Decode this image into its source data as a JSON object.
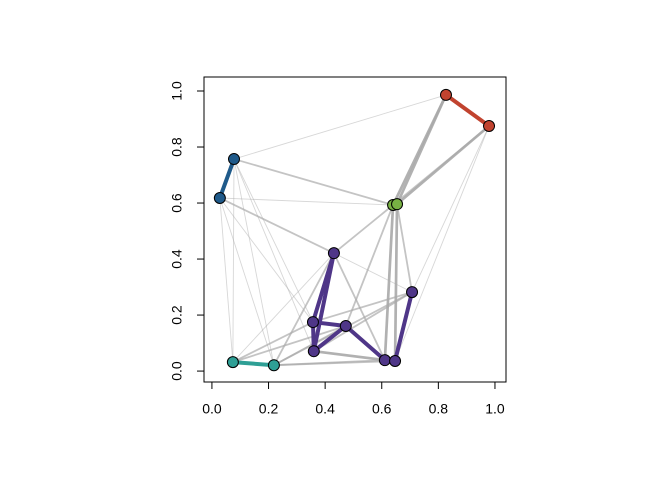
{
  "chart_data": {
    "type": "network",
    "xlim": [
      -0.028,
      1.039
    ],
    "ylim": [
      -0.039,
      1.05
    ],
    "xticks": [
      {
        "value": 0,
        "label": "0.0"
      },
      {
        "value": 0.2,
        "label": "0.2"
      },
      {
        "value": 0.4,
        "label": "0.4"
      },
      {
        "value": 0.6,
        "label": "0.6"
      },
      {
        "value": 0.8,
        "label": "0.8"
      },
      {
        "value": 1,
        "label": "1.0"
      }
    ],
    "yticks": [
      {
        "value": 0,
        "label": "0.0"
      },
      {
        "value": 0.2,
        "label": "0.2"
      },
      {
        "value": 0.4,
        "label": "0.4"
      },
      {
        "value": 0.6,
        "label": "0.6"
      },
      {
        "value": 0.8,
        "label": "0.8"
      },
      {
        "value": 1,
        "label": "1.0"
      }
    ],
    "group_colors": [
      "#c1432f",
      "#1f5a8a",
      "#78b143",
      "#4f3688",
      "#2e9f95"
    ],
    "edge_color": "#a9a9a9",
    "nodes": [
      {
        "x": 0.827,
        "y": 0.986,
        "group": 0
      },
      {
        "x": 0.979,
        "y": 0.875,
        "group": 0
      },
      {
        "x": 0.078,
        "y": 0.757,
        "group": 1
      },
      {
        "x": 0.028,
        "y": 0.618,
        "group": 1
      },
      {
        "x": 0.64,
        "y": 0.593,
        "group": 2
      },
      {
        "x": 0.654,
        "y": 0.596,
        "group": 2
      },
      {
        "x": 0.431,
        "y": 0.421,
        "group": 3
      },
      {
        "x": 0.707,
        "y": 0.282,
        "group": 3
      },
      {
        "x": 0.357,
        "y": 0.175,
        "group": 3
      },
      {
        "x": 0.473,
        "y": 0.161,
        "group": 3
      },
      {
        "x": 0.36,
        "y": 0.071,
        "group": 3
      },
      {
        "x": 0.611,
        "y": 0.039,
        "group": 3
      },
      {
        "x": 0.647,
        "y": 0.036,
        "group": 3
      },
      {
        "x": 0.074,
        "y": 0.032,
        "group": 4
      },
      {
        "x": 0.219,
        "y": 0.021,
        "group": 4
      }
    ],
    "edges": [
      {
        "from": 0,
        "to": 4,
        "weight": 3
      },
      {
        "from": 0,
        "to": 5,
        "weight": 3
      },
      {
        "from": 1,
        "to": 5,
        "weight": 3
      },
      {
        "from": 1,
        "to": 4,
        "weight": 2
      },
      {
        "from": 4,
        "to": 6,
        "weight": 2
      },
      {
        "from": 4,
        "to": 11,
        "weight": 3
      },
      {
        "from": 5,
        "to": 12,
        "weight": 3
      },
      {
        "from": 5,
        "to": 7,
        "weight": 2
      },
      {
        "from": 4,
        "to": 9,
        "weight": 2
      },
      {
        "from": 10,
        "to": 11,
        "weight": 3
      },
      {
        "from": 14,
        "to": 11,
        "weight": 2
      },
      {
        "from": 14,
        "to": 7,
        "weight": 2
      },
      {
        "from": 8,
        "to": 7,
        "weight": 2
      },
      {
        "from": 2,
        "to": 4,
        "weight": 2
      },
      {
        "from": 3,
        "to": 4,
        "weight": 1
      },
      {
        "from": 3,
        "to": 6,
        "weight": 2
      },
      {
        "from": 2,
        "to": 8,
        "weight": 1
      },
      {
        "from": 3,
        "to": 14,
        "weight": 1
      },
      {
        "from": 2,
        "to": 14,
        "weight": 1
      },
      {
        "from": 13,
        "to": 6,
        "weight": 1
      },
      {
        "from": 14,
        "to": 6,
        "weight": 2
      },
      {
        "from": 13,
        "to": 9,
        "weight": 2
      },
      {
        "from": 13,
        "to": 8,
        "weight": 2
      },
      {
        "from": 3,
        "to": 13,
        "weight": 1
      },
      {
        "from": 2,
        "to": 13,
        "weight": 1
      },
      {
        "from": 0,
        "to": 2,
        "weight": 1
      },
      {
        "from": 1,
        "to": 7,
        "weight": 1
      },
      {
        "from": 1,
        "to": 12,
        "weight": 1
      },
      {
        "from": 2,
        "to": 10,
        "weight": 1
      },
      {
        "from": 3,
        "to": 8,
        "weight": 1
      },
      {
        "from": 14,
        "to": 9,
        "weight": 2
      },
      {
        "from": 14,
        "to": 12,
        "weight": 2
      },
      {
        "from": 6,
        "to": 7,
        "weight": 1
      },
      {
        "from": 6,
        "to": 11,
        "weight": 2
      },
      {
        "from": 10,
        "to": 7,
        "weight": 2
      },
      {
        "from": 0,
        "to": 1,
        "weight": 4
      },
      {
        "from": 2,
        "to": 3,
        "weight": 4
      },
      {
        "from": 4,
        "to": 5,
        "weight": 4
      },
      {
        "from": 6,
        "to": 8,
        "weight": 4
      },
      {
        "from": 8,
        "to": 10,
        "weight": 4
      },
      {
        "from": 8,
        "to": 9,
        "weight": 4
      },
      {
        "from": 9,
        "to": 10,
        "weight": 4
      },
      {
        "from": 9,
        "to": 11,
        "weight": 4
      },
      {
        "from": 11,
        "to": 12,
        "weight": 4
      },
      {
        "from": 7,
        "to": 12,
        "weight": 4
      },
      {
        "from": 6,
        "to": 10,
        "weight": 4
      },
      {
        "from": 13,
        "to": 14,
        "weight": 4
      }
    ]
  }
}
